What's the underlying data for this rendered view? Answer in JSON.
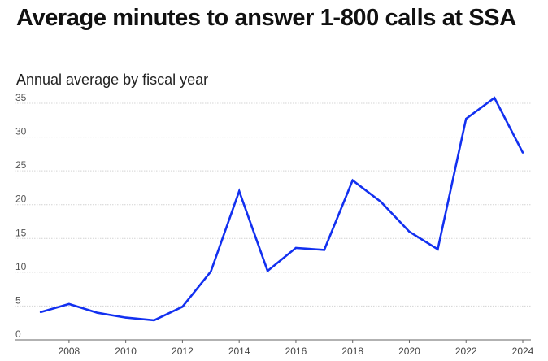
{
  "chart_data": {
    "type": "line",
    "title": "Average minutes to answer 1-800 calls at SSA",
    "subtitle": "Annual average by fiscal year",
    "xlabel": "",
    "ylabel": "",
    "x": [
      2007,
      2008,
      2009,
      2010,
      2011,
      2012,
      2013,
      2014,
      2015,
      2016,
      2017,
      2018,
      2019,
      2020,
      2021,
      2022,
      2023,
      2024
    ],
    "series": [
      {
        "values": [
          4.1,
          5.3,
          4.0,
          3.3,
          2.9,
          4.9,
          10.1,
          22.0,
          10.2,
          13.6,
          13.3,
          23.6,
          20.4,
          16.0,
          13.4,
          32.7,
          35.8,
          27.7
        ]
      }
    ],
    "ylim": [
      0,
      35
    ],
    "yticks": [
      "0",
      "5",
      "10",
      "15",
      "20",
      "25",
      "30",
      "35"
    ],
    "xticks": [
      "2008",
      "2010",
      "2012",
      "2014",
      "2016",
      "2018",
      "2020",
      "2022",
      "2024"
    ],
    "grid": true,
    "line_color": "#1230f0"
  }
}
